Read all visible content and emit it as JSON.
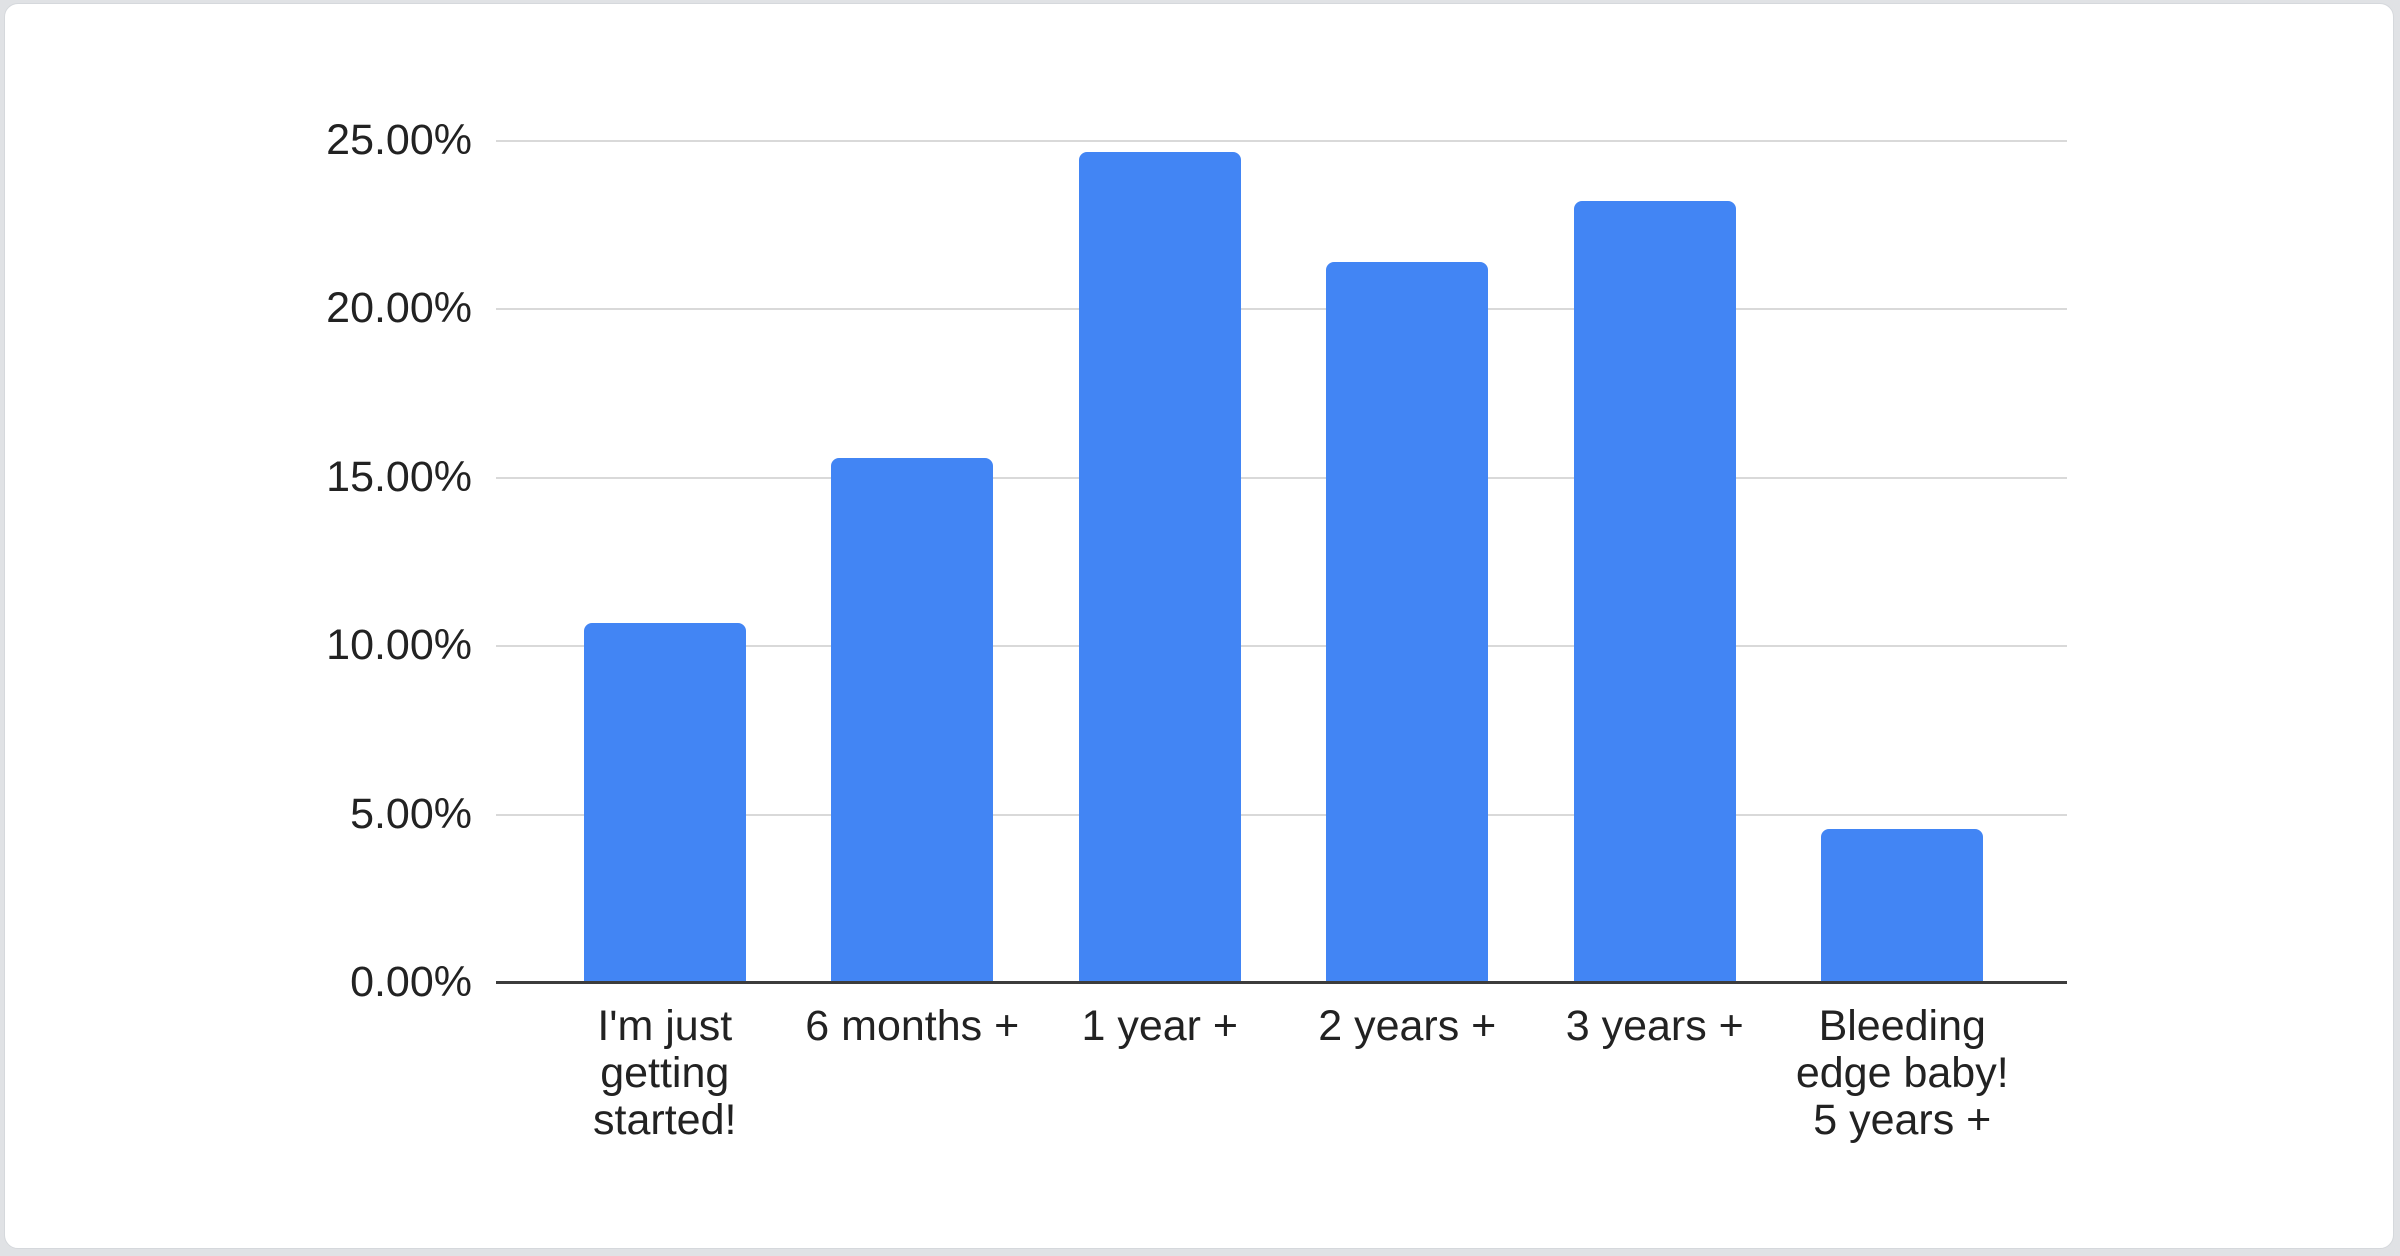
{
  "chart_data": {
    "type": "bar",
    "title": "",
    "xlabel": "",
    "ylabel": "",
    "categories": [
      "I'm just getting started!",
      "6 months +",
      "1 year +",
      "2 years +",
      "3 years +",
      "Bleeding edge baby! 5 years +"
    ],
    "categories_display_lines": [
      [
        "I'm just",
        "getting",
        "started!"
      ],
      [
        "6 months +"
      ],
      [
        "1 year +"
      ],
      [
        "2 years +"
      ],
      [
        "3 years +"
      ],
      [
        "Bleeding",
        "edge baby!",
        "5 years +"
      ]
    ],
    "values": [
      10.65,
      15.57,
      24.64,
      21.37,
      23.18,
      4.55
    ],
    "ylim": [
      0,
      25
    ],
    "y_ticks": [
      {
        "label": "25.00%",
        "value": 25
      },
      {
        "label": "20.00%",
        "value": 20
      },
      {
        "label": "15.00%",
        "value": 15
      },
      {
        "label": "10.00%",
        "value": 10
      },
      {
        "label": "5.00%",
        "value": 5
      },
      {
        "label": "0.00%",
        "value": 0
      }
    ],
    "grid": "horizontal-only",
    "legend_position": "none",
    "colors": {
      "bar": "#4285f4",
      "gridline": "#d9d9d9",
      "axis_line": "#3c3c3c",
      "tick_text": "#222222",
      "card_background": "#ffffff",
      "card_border": "#d5d8dc",
      "page_background": "#e0e2e5"
    }
  }
}
